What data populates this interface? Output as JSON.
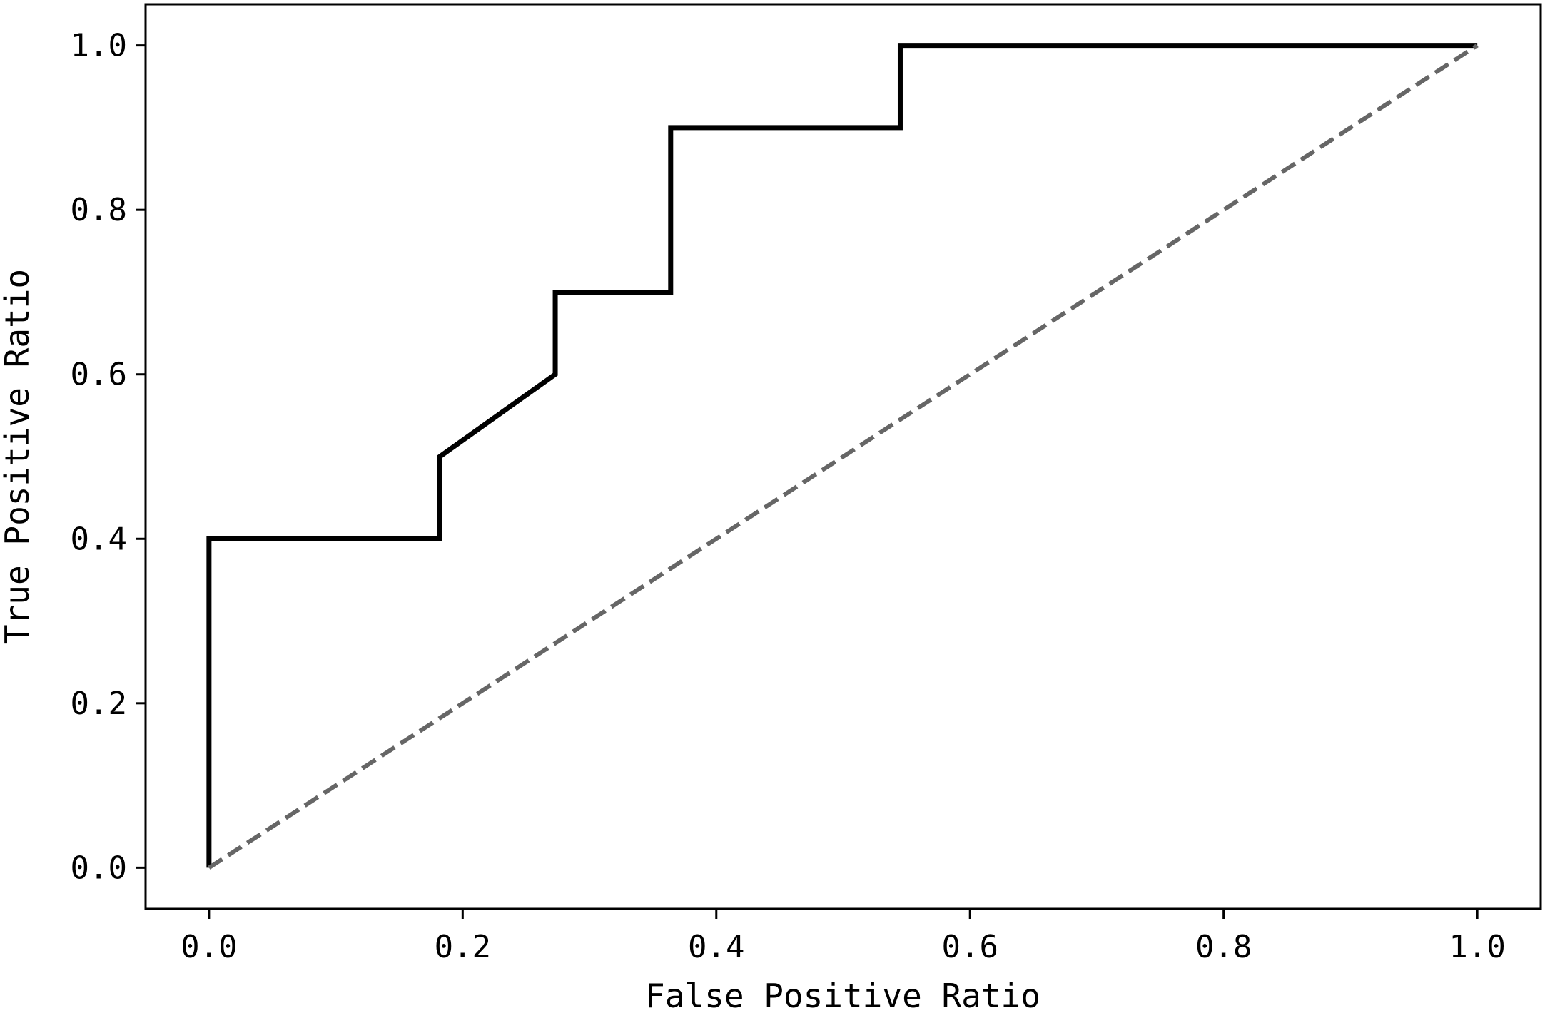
{
  "chart_data": {
    "type": "line",
    "title": "",
    "xlabel": "False Positive Ratio",
    "ylabel": "True Positive Ratio",
    "xlim": [
      -0.05,
      1.05
    ],
    "ylim": [
      -0.05,
      1.05
    ],
    "xticks": [
      "0.0",
      "0.2",
      "0.4",
      "0.6",
      "0.8",
      "1.0"
    ],
    "yticks": [
      "0.0",
      "0.2",
      "0.4",
      "0.6",
      "0.8",
      "1.0"
    ],
    "grid": false,
    "legend": "none",
    "series": [
      {
        "style": "solid",
        "color": "#000000",
        "points": [
          [
            0.0,
            0.0
          ],
          [
            0.0,
            0.4
          ],
          [
            0.182,
            0.4
          ],
          [
            0.182,
            0.5
          ],
          [
            0.273,
            0.6
          ],
          [
            0.273,
            0.7
          ],
          [
            0.364,
            0.7
          ],
          [
            0.364,
            0.9
          ],
          [
            0.545,
            0.9
          ],
          [
            0.545,
            1.0
          ],
          [
            1.0,
            1.0
          ]
        ]
      },
      {
        "style": "dashed",
        "color": "#666666",
        "points": [
          [
            0.0,
            0.0
          ],
          [
            1.0,
            1.0
          ]
        ]
      }
    ]
  }
}
